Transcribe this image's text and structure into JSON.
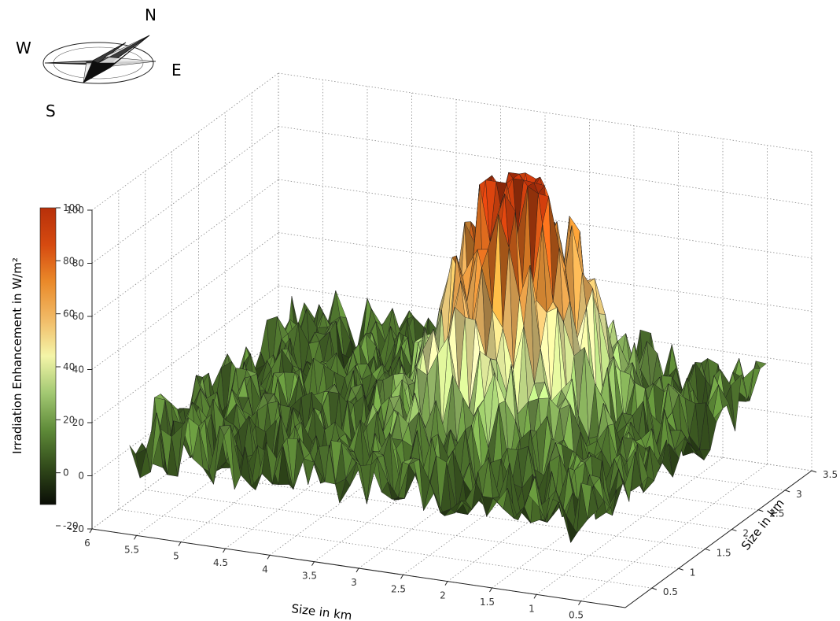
{
  "compass": {
    "north": "N",
    "south": "S",
    "east": "E",
    "west": "W"
  },
  "colorbar": {
    "label": "Irradiation Enhancement in W/m²",
    "ticks": [
      -20,
      0,
      20,
      40,
      60,
      80,
      100
    ],
    "range": [
      -10,
      100
    ],
    "colors": [
      "#0a0d06",
      "#314a1a",
      "#5e8a38",
      "#a2c872",
      "#f4f5a8",
      "#f1ba66",
      "#ea8a2a",
      "#d64a10",
      "#b7300a"
    ]
  },
  "chart_data": {
    "type": "surface3d",
    "x_axis": {
      "label": "Size in km",
      "range": [
        0,
        6
      ],
      "ticks": [
        0.5,
        1,
        1.5,
        2,
        2.5,
        3,
        3.5,
        4,
        4.5,
        5,
        5.5,
        6
      ]
    },
    "y_axis": {
      "label": "Size in km",
      "range": [
        0,
        3.5
      ],
      "ticks": [
        0.5,
        1,
        1.5,
        2,
        2.5,
        3,
        3.5
      ]
    },
    "z_axis": {
      "range": [
        -20,
        100
      ],
      "ticks": [
        -20,
        0,
        20,
        40,
        60,
        80,
        100
      ]
    },
    "grid": true,
    "surface": {
      "description": "noisy field with a single central peak",
      "baseline_w_m2": 10,
      "noise_amplitude_w_m2": 12,
      "peak_center_km": [
        2.4,
        2.0
      ],
      "peak_amplitude_w_m2": 85,
      "peak_width_km": 0.55,
      "z_min": -15,
      "z_max": 100
    }
  }
}
